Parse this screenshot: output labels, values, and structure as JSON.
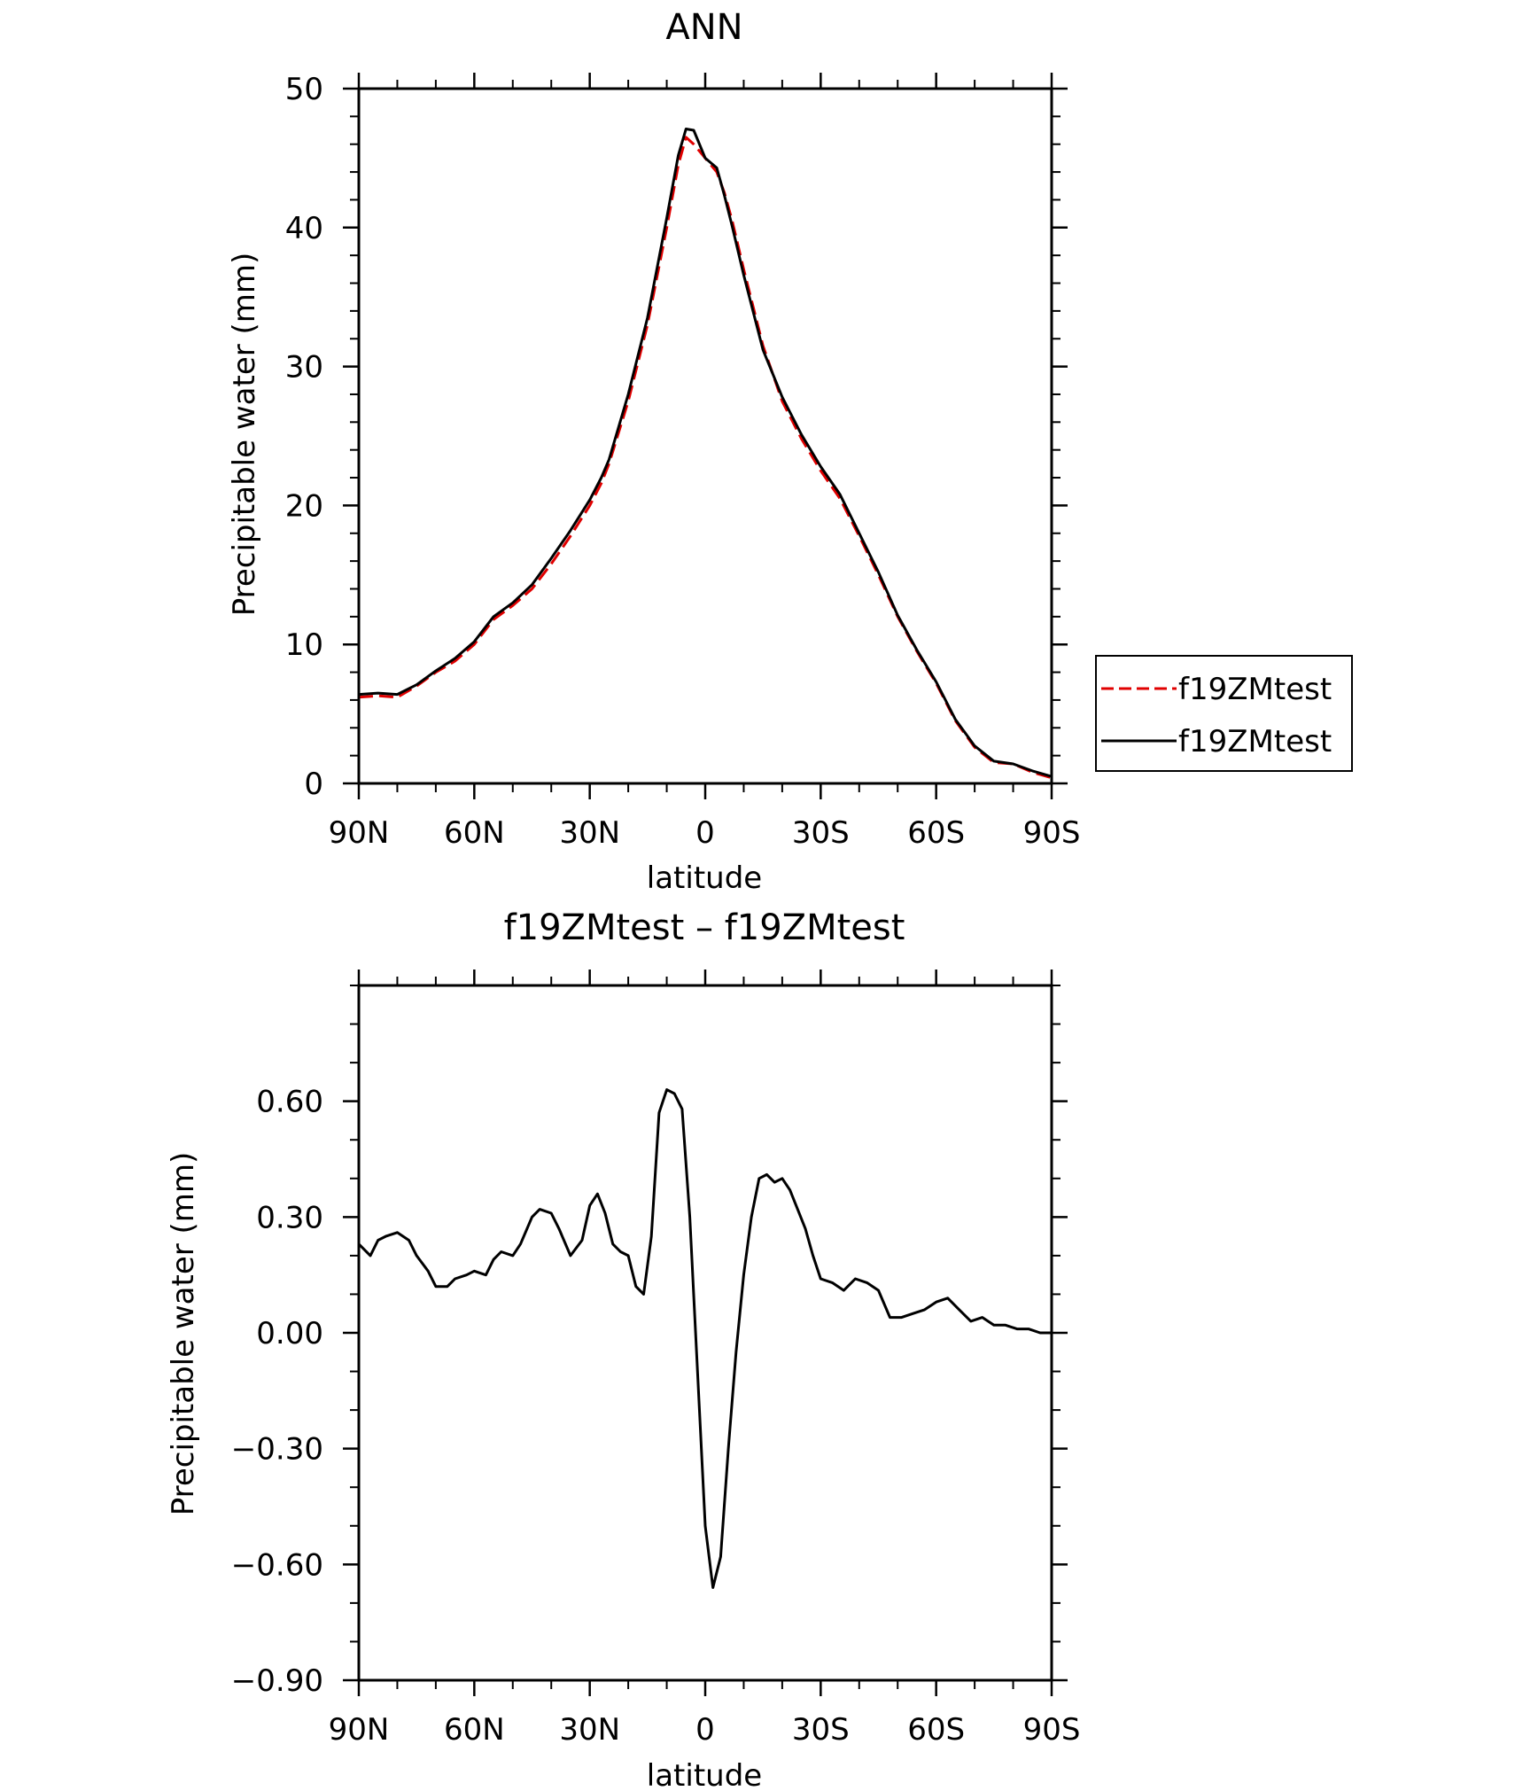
{
  "chart_data": [
    {
      "type": "line",
      "title": "ANN",
      "xlabel": "latitude",
      "ylabel": "Precipitable water (mm)",
      "xlim": [
        -90,
        90
      ],
      "ylim": [
        0,
        50
      ],
      "x_ticks": [
        -90,
        -60,
        -30,
        0,
        30,
        60,
        90
      ],
      "x_tick_labels": [
        "90N",
        "60N",
        "30N",
        "0",
        "30S",
        "60S",
        "90S"
      ],
      "y_ticks": [
        0,
        10,
        20,
        30,
        40,
        50
      ],
      "y_tick_labels": [
        "0",
        "10",
        "20",
        "30",
        "40",
        "50"
      ],
      "grid": false,
      "legend_position": "right",
      "x": [
        -90,
        -85,
        -80,
        -75,
        -70,
        -65,
        -60,
        -55,
        -50,
        -45,
        -40,
        -35,
        -30,
        -27,
        -25,
        -20,
        -15,
        -10,
        -7,
        -5,
        -3,
        0,
        3,
        5,
        7,
        10,
        15,
        20,
        25,
        30,
        35,
        40,
        45,
        50,
        55,
        60,
        65,
        70,
        75,
        80,
        85,
        90
      ],
      "series": [
        {
          "name": "f19ZMtest",
          "color": "#e00000",
          "dash": "dashed",
          "values": [
            6.2,
            6.3,
            6.2,
            7.0,
            8.0,
            8.8,
            10.0,
            11.8,
            12.8,
            14.0,
            15.8,
            17.8,
            20.0,
            21.6,
            23.0,
            27.5,
            33.0,
            40.0,
            44.5,
            46.5,
            46.0,
            45.0,
            44.0,
            42.5,
            40.5,
            37.0,
            31.5,
            27.5,
            24.8,
            22.5,
            20.5,
            17.8,
            15.0,
            12.0,
            9.5,
            7.2,
            4.5,
            2.6,
            1.5,
            1.4,
            0.8,
            0.4
          ]
        },
        {
          "name": "f19ZMtest",
          "color": "#000000",
          "dash": "solid",
          "values": [
            6.4,
            6.5,
            6.4,
            7.1,
            8.1,
            9.0,
            10.2,
            12.0,
            13.0,
            14.3,
            16.2,
            18.2,
            20.4,
            22.0,
            23.3,
            28.0,
            33.5,
            40.7,
            45.2,
            47.1,
            47.0,
            45.0,
            44.3,
            42.3,
            40.1,
            36.6,
            31.2,
            27.8,
            25.1,
            22.8,
            20.8,
            18.0,
            15.2,
            12.1,
            9.6,
            7.3,
            4.6,
            2.7,
            1.6,
            1.4,
            0.9,
            0.5
          ]
        }
      ]
    },
    {
      "type": "line",
      "title": "f19ZMtest – f19ZMtest",
      "xlabel": "latitude",
      "ylabel": "Precipitable water (mm)",
      "xlim": [
        -90,
        90
      ],
      "ylim": [
        -0.9,
        0.9
      ],
      "x_ticks": [
        -90,
        -60,
        -30,
        0,
        30,
        60,
        90
      ],
      "x_tick_labels": [
        "90N",
        "60N",
        "30N",
        "0",
        "30S",
        "60S",
        "90S"
      ],
      "y_ticks": [
        -0.9,
        -0.6,
        -0.3,
        0.0,
        0.3,
        0.6
      ],
      "y_tick_labels": [
        "−0.90",
        "−0.60",
        "−0.30",
        "0.00",
        "0.30",
        "0.60"
      ],
      "grid": false,
      "x": [
        -90,
        -87,
        -85,
        -83,
        -80,
        -77,
        -75,
        -72,
        -70,
        -67,
        -65,
        -62,
        -60,
        -57,
        -55,
        -53,
        -50,
        -48,
        -45,
        -43,
        -40,
        -38,
        -35,
        -32,
        -30,
        -28,
        -26,
        -24,
        -22,
        -20,
        -18,
        -16,
        -14,
        -12,
        -10,
        -8,
        -6,
        -4,
        -2,
        0,
        2,
        4,
        6,
        8,
        10,
        12,
        14,
        16,
        18,
        20,
        22,
        24,
        26,
        28,
        30,
        33,
        36,
        39,
        42,
        45,
        48,
        51,
        54,
        57,
        60,
        63,
        66,
        69,
        72,
        75,
        78,
        81,
        84,
        87,
        90
      ],
      "series": [
        {
          "name": "",
          "color": "#000000",
          "dash": "solid",
          "values": [
            0.23,
            0.2,
            0.24,
            0.25,
            0.26,
            0.24,
            0.2,
            0.16,
            0.12,
            0.12,
            0.14,
            0.15,
            0.16,
            0.15,
            0.19,
            0.21,
            0.2,
            0.23,
            0.3,
            0.32,
            0.31,
            0.27,
            0.2,
            0.24,
            0.33,
            0.36,
            0.31,
            0.23,
            0.21,
            0.2,
            0.12,
            0.1,
            0.25,
            0.57,
            0.63,
            0.62,
            0.58,
            0.3,
            -0.1,
            -0.5,
            -0.66,
            -0.58,
            -0.3,
            -0.05,
            0.15,
            0.3,
            0.4,
            0.41,
            0.39,
            0.4,
            0.37,
            0.32,
            0.27,
            0.2,
            0.14,
            0.13,
            0.11,
            0.14,
            0.13,
            0.11,
            0.04,
            0.04,
            0.05,
            0.06,
            0.08,
            0.09,
            0.06,
            0.03,
            0.04,
            0.02,
            0.02,
            0.01,
            0.01,
            0.0,
            0.0
          ]
        }
      ]
    }
  ]
}
